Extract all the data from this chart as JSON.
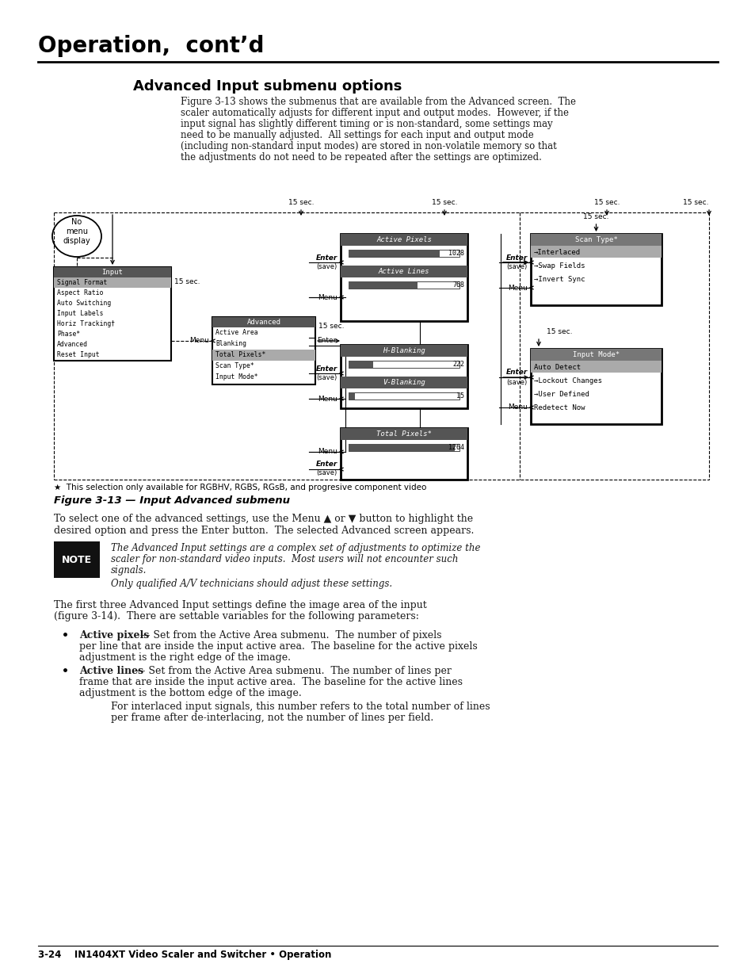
{
  "page_title": "Operation,  cont’d",
  "section_title": "Advanced Input submenu options",
  "figure_caption": "Figure 3-13 — Input Advanced submenu",
  "note_label": "NOTE",
  "note_italic": "Only qualified A/V technicians should adjust these settings.",
  "footer_text": "3-24    IN1404XT Video Scaler and Switcher • Operation",
  "bg_color": "#ffffff",
  "text_color": "#1a1a1a",
  "title_color": "#000000"
}
